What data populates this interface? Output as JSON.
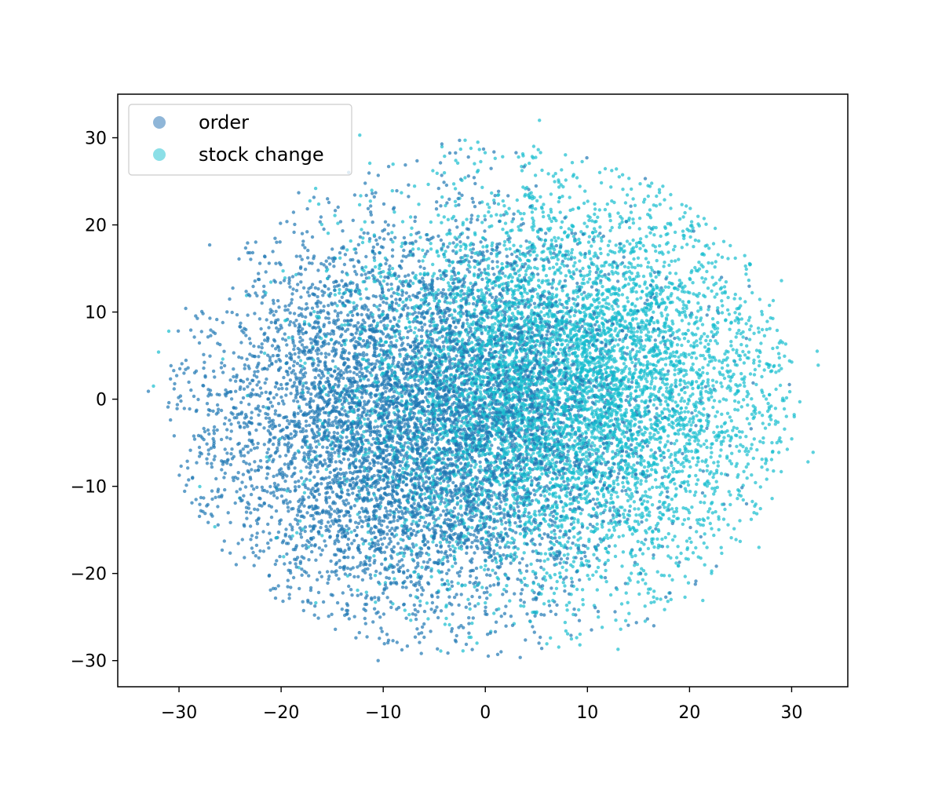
{
  "chart_data": {
    "type": "scatter",
    "title": "",
    "xlabel": "",
    "ylabel": "",
    "xlim": [
      -36,
      35.5
    ],
    "ylim": [
      -33,
      35
    ],
    "grid": false,
    "xticks": [
      -30,
      -20,
      -10,
      0,
      10,
      20,
      30
    ],
    "yticks": [
      -30,
      -20,
      -10,
      0,
      10,
      20,
      30
    ],
    "xtick_labels": [
      "−30",
      "−20",
      "−10",
      "0",
      "10",
      "20",
      "30"
    ],
    "ytick_labels": [
      "−30",
      "−20",
      "−10",
      "0",
      "10",
      "20",
      "30"
    ],
    "legend_position": "top-left",
    "series": [
      {
        "name": "order",
        "color": "#1f77b4",
        "legend_color": "#8fb6d8",
        "center": [
          -7,
          -3
        ],
        "spread": [
          10.5,
          11
        ],
        "count": 7000,
        "outliers": [
          [
            -27,
            17.7
          ],
          [
            -10.5,
            -30
          ],
          [
            16.5,
            -26
          ],
          [
            -33,
            0.9
          ]
        ]
      },
      {
        "name": "stock change",
        "color": "#17becf",
        "legend_color": "#8bdfe7",
        "center": [
          8,
          1.5
        ],
        "spread": [
          10.5,
          11
        ],
        "count": 7000,
        "outliers": [
          [
            5.3,
            32
          ],
          [
            -12.3,
            30.3
          ],
          [
            -31,
            7.8
          ],
          [
            -32,
            5.4
          ],
          [
            32.5,
            5.5
          ],
          [
            32.6,
            3.9
          ],
          [
            30.8,
            -0.3
          ],
          [
            32.1,
            -6.1
          ],
          [
            31.6,
            -7.2
          ],
          [
            29,
            13.6
          ],
          [
            21.3,
            -23.1
          ],
          [
            13,
            -28.7
          ],
          [
            26.8,
            -17
          ],
          [
            -32.5,
            1.5
          ]
        ]
      }
    ],
    "envelope": {
      "center": [
        -0.5,
        0
      ],
      "radius_x": 31,
      "radius_y": 30
    }
  }
}
